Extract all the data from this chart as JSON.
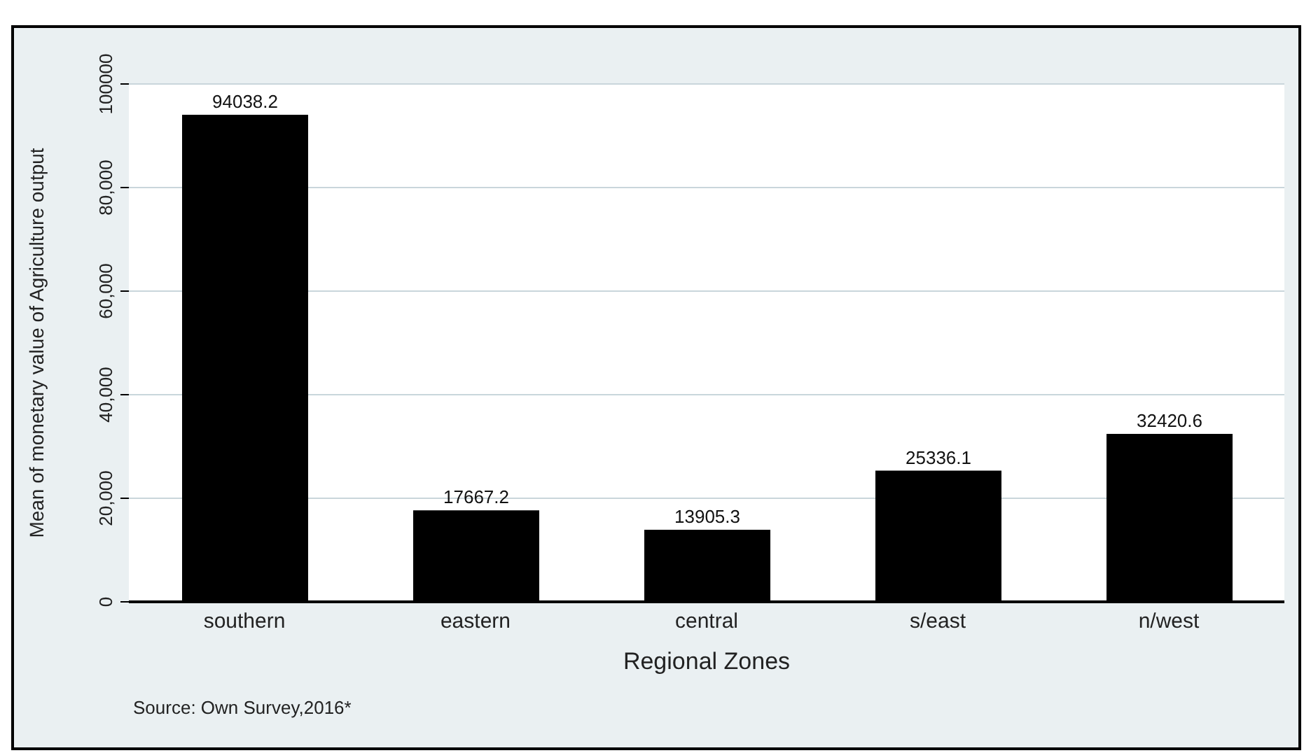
{
  "chart_data": {
    "type": "bar",
    "categories": [
      "southern",
      "eastern",
      "central",
      "s/east",
      "n/west"
    ],
    "values": [
      94038.2,
      17667.2,
      13905.3,
      25336.1,
      32420.6
    ],
    "color": "#000000",
    "xlabel": "Regional Zones",
    "ylabel": "Mean of monetary value of Agriculture output",
    "ylim": [
      0,
      100000
    ],
    "yticks": [
      0,
      {
        "value": 20000,
        "label": "20,000"
      },
      {
        "value": 40000,
        "label": "40,000"
      },
      {
        "value": 60000,
        "label": "60,000"
      },
      {
        "value": 80000,
        "label": "80,000"
      },
      {
        "value": 100000,
        "label": "100000"
      }
    ],
    "grid": "y",
    "data_labels": true,
    "legend": false,
    "annotations": [
      "Source: Own Survey,2016*"
    ]
  }
}
